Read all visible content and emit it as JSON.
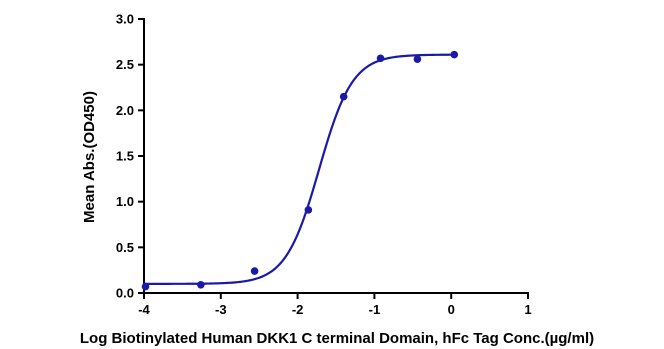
{
  "chart_data": {
    "type": "scatter",
    "title": "",
    "xlabel": "Log Biotinylated Human DKK1 C terminal Domain, hFc Tag Conc.(µg/ml)",
    "ylabel": "Mean Abs.(OD450)",
    "xlim": [
      -4,
      1
    ],
    "ylim": [
      0,
      3.0
    ],
    "x_ticks": [
      "-4",
      "-3",
      "-2",
      "-1",
      "0",
      "1"
    ],
    "y_ticks": [
      "0.0",
      "0.5",
      "1.0",
      "1.5",
      "2.0",
      "2.5",
      "3.0"
    ],
    "grid": false,
    "legend": "none",
    "series": [
      {
        "color": "#1a1aa6",
        "points": [
          {
            "x": -3.98,
            "y": 0.07
          },
          {
            "x": -3.26,
            "y": 0.09
          },
          {
            "x": -2.56,
            "y": 0.24
          },
          {
            "x": -1.86,
            "y": 0.91
          },
          {
            "x": -1.4,
            "y": 2.15
          },
          {
            "x": -0.92,
            "y": 2.57
          },
          {
            "x": -0.44,
            "y": 2.56
          },
          {
            "x": 0.04,
            "y": 2.61
          }
        ],
        "fit_curve": {
          "model": "4PL",
          "bottom": 0.1,
          "top": 2.61,
          "log_ec50": -1.72,
          "hill_slope": 2.0,
          "x_range": [
            -4,
            0.04
          ]
        }
      }
    ]
  }
}
